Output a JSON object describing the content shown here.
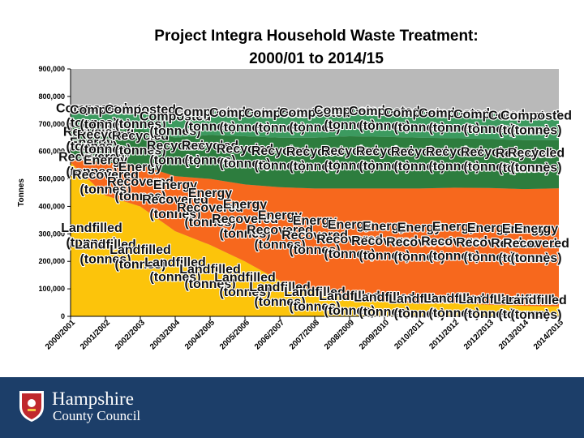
{
  "header": {
    "title_line1": "Project Integra Household Waste Treatment:",
    "title_line2": "2000/01 to 2014/15"
  },
  "branding": {
    "logo": "hampshire-crest-icon",
    "name_line1": "Hampshire",
    "name_line2": "County Council"
  },
  "colors": {
    "composted": "#3c9a5f",
    "recycled": "#2d7d3e",
    "energy_recovered": "#f7681d",
    "landfilled": "#fcc40b",
    "background": "#b9b9b9",
    "footer": "#1c3e69",
    "label_text": "#111111",
    "label_halo": "#ffffff"
  },
  "chart_data": {
    "type": "area",
    "stacked": true,
    "title": "Project Integra Household Waste Treatment: 2000/01 to 2014/15",
    "ylabel": "Tonnes",
    "xlabel": "",
    "ylim": [
      0,
      900000
    ],
    "yticks": [
      0,
      100000,
      200000,
      300000,
      400000,
      500000,
      600000,
      700000,
      800000,
      900000
    ],
    "ytick_labels": [
      "0",
      "100,000",
      "200,000",
      "300,000",
      "400,000",
      "500,000",
      "600,000",
      "700,000",
      "800,000",
      "900,000"
    ],
    "categories": [
      "2000/2001",
      "2001/2002",
      "2002/2003",
      "2003/2004",
      "2004/2005",
      "2005/2006",
      "2006/2007",
      "2007/2008",
      "2008/2009",
      "2009/2010",
      "2010/2011",
      "2011/2012",
      "2012/2013",
      "2013/2014",
      "2014/2015"
    ],
    "series": [
      {
        "name": "Landfilled (tonnes)",
        "values": [
          560000,
          440000,
          400000,
          310000,
          260000,
          200000,
          130000,
          95000,
          65000,
          55000,
          45000,
          48000,
          42000,
          38000,
          36000
        ]
      },
      {
        "name": "Energy Recovered (tonnes)",
        "values": [
          10000,
          120000,
          150000,
          200000,
          240000,
          280000,
          340000,
          370000,
          400000,
          410000,
          420000,
          420000,
          425000,
          425000,
          430000
        ]
      },
      {
        "name": "Recycled (tonnes)",
        "values": [
          120000,
          120000,
          130000,
          140000,
          160000,
          175000,
          180000,
          185000,
          190000,
          188000,
          185000,
          180000,
          178000,
          178000,
          175000
        ]
      },
      {
        "name": "Composted (tonnes)",
        "values": [
          50000,
          58000,
          62000,
          72000,
          85000,
          90000,
          95000,
          100000,
          105000,
          105000,
          100000,
          100000,
          98000,
          96000,
          95000
        ]
      }
    ],
    "grid": false,
    "legend": "none",
    "labels": {
      "composted": [
        "Composted",
        "(tonnes)"
      ],
      "recycled": [
        "Recycled",
        "(tonnes)"
      ],
      "energy": [
        "Energy",
        "Recovered",
        "(tonnes)"
      ],
      "landfilled": [
        "Landfilled",
        "(tonnes)"
      ]
    }
  }
}
